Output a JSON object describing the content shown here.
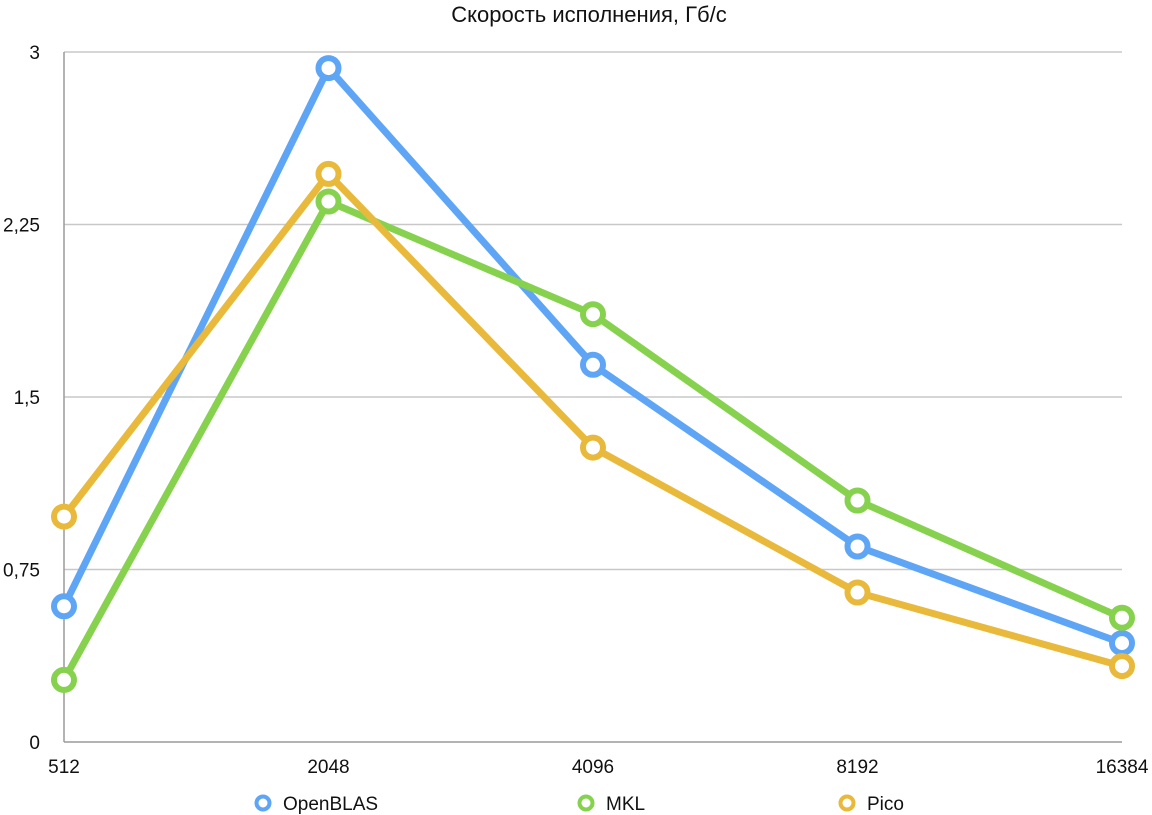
{
  "chart_data": {
    "type": "line",
    "title": "Скорость исполнения, Гб/с",
    "xlabel": "",
    "ylabel": "",
    "categories": [
      "512",
      "2048",
      "4096",
      "8192",
      "16384"
    ],
    "yticks": [
      "0",
      "0,75",
      "1,5",
      "2,25",
      "3"
    ],
    "ytick_values": [
      0,
      0.75,
      1.5,
      2.25,
      3
    ],
    "ylim": [
      0,
      3
    ],
    "grid": true,
    "legend_position": "bottom",
    "series": [
      {
        "name": "OpenBLAS",
        "color": "#5fa5f6",
        "values": [
          0.59,
          2.93,
          1.64,
          0.85,
          0.43
        ]
      },
      {
        "name": "MKL",
        "color": "#86d24f",
        "values": [
          0.27,
          2.35,
          1.86,
          1.05,
          0.54
        ]
      },
      {
        "name": "Pico",
        "color": "#e8b93a",
        "values": [
          0.98,
          2.47,
          1.28,
          0.65,
          0.33
        ]
      }
    ]
  }
}
